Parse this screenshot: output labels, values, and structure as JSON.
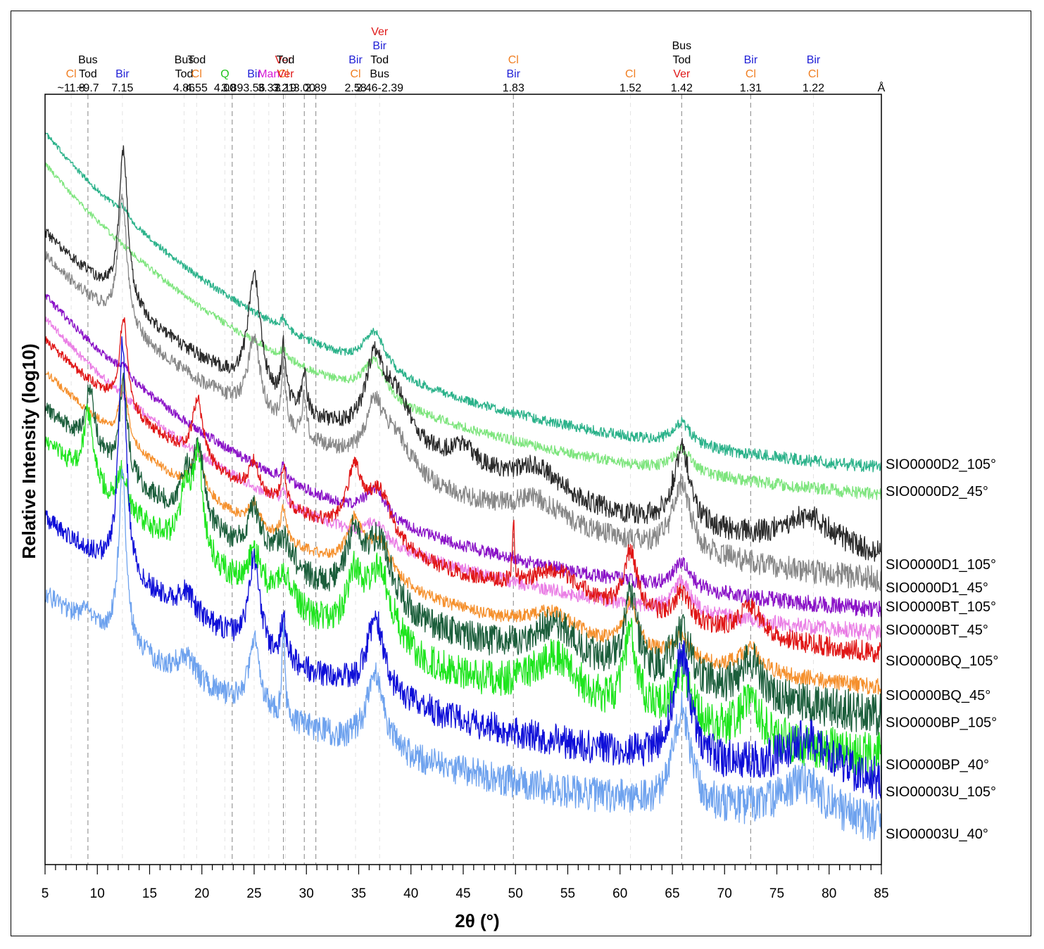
{
  "mineral_colors": {
    "Cl": "#f07f23",
    "Bus": "#000000",
    "Tod": "#000000",
    "Bir": "#1f1fd6",
    "Q": "#22c41e",
    "Man": "#d61ad6",
    "Ver": "#e01818"
  },
  "chart_data": {
    "type": "line",
    "title": "",
    "xlabel": "2θ (°)",
    "ylabel": "Relative Intensity (log10)",
    "xlim": [
      5,
      85
    ],
    "x_ticks": [
      "5",
      "10",
      "15",
      "20",
      "25",
      "30",
      "35",
      "40",
      "45",
      "50",
      "55",
      "60",
      "65",
      "70",
      "75",
      "80",
      "85"
    ],
    "angstrom_unit": "Å",
    "peak_annotations": [
      {
        "two_theta": 7.5,
        "d": "~11.8",
        "minerals": [
          "Cl"
        ],
        "dashed": false
      },
      {
        "two_theta": 9.1,
        "d": "~9.7",
        "minerals": [
          "Bus",
          "Tod"
        ],
        "dashed": true
      },
      {
        "two_theta": 12.4,
        "d": "7.15",
        "minerals": [
          "Bir"
        ],
        "dashed": false
      },
      {
        "two_theta": 18.3,
        "d": "4.86",
        "minerals": [
          "Bus",
          "Tod"
        ],
        "dashed": false
      },
      {
        "two_theta": 19.5,
        "d": "4.55",
        "minerals": [
          "Tod",
          "Cl"
        ],
        "dashed": false
      },
      {
        "two_theta": 22.2,
        "d": "4.00",
        "minerals": [
          "Q"
        ],
        "dashed": false
      },
      {
        "two_theta": 22.9,
        "d": "3.89",
        "minerals": [],
        "dashed": true
      },
      {
        "two_theta": 25.0,
        "d": "3.56",
        "minerals": [
          "Bir"
        ],
        "dashed": false
      },
      {
        "two_theta": 26.4,
        "d": "3.37",
        "minerals": [
          "Man"
        ],
        "dashed": false
      },
      {
        "two_theta": 27.8,
        "d": "3.21",
        "minerals": [
          "Ver",
          "Cl"
        ],
        "dashed": true
      },
      {
        "two_theta": 28.0,
        "d": "3.19",
        "minerals": [
          "Tod",
          "Ver"
        ],
        "dashed": false
      },
      {
        "two_theta": 29.8,
        "d": "3.00",
        "minerals": [],
        "dashed": true
      },
      {
        "two_theta": 30.9,
        "d": "2.89",
        "minerals": [],
        "dashed": true
      },
      {
        "two_theta": 34.7,
        "d": "2.58",
        "minerals": [
          "Bir",
          "Cl"
        ],
        "dashed": false
      },
      {
        "two_theta": 37.0,
        "d": "2.46-2.39",
        "minerals": [
          "Ver",
          "Bir",
          "Tod",
          "Bus"
        ],
        "dashed": false
      },
      {
        "two_theta": 49.8,
        "d": "1.83",
        "minerals": [
          "Cl",
          "Bir"
        ],
        "dashed": true
      },
      {
        "two_theta": 61.0,
        "d": "1.52",
        "minerals": [
          "Cl"
        ],
        "dashed": false
      },
      {
        "two_theta": 65.9,
        "d": "1.42",
        "minerals": [
          "Bus",
          "Tod",
          "Ver"
        ],
        "dashed": true
      },
      {
        "two_theta": 72.5,
        "d": "1.31",
        "minerals": [
          "Bir",
          "Cl"
        ],
        "dashed": true
      },
      {
        "two_theta": 78.5,
        "d": "1.22",
        "minerals": [
          "Bir",
          "Cl"
        ],
        "dashed": false
      }
    ],
    "series": [
      {
        "name": "SIO0000D2_105°",
        "color": "#2bb28a",
        "start": 0.95,
        "end": 0.52,
        "curve": 3,
        "noise": 0.006,
        "peaks": [
          [
            12.5,
            0.012,
            0.6
          ],
          [
            27.8,
            0.015,
            0.25
          ],
          [
            36.5,
            0.05,
            1.3
          ],
          [
            65.9,
            0.03,
            1.1
          ]
        ]
      },
      {
        "name": "SIO0000D2_45°",
        "color": "#7ee57e",
        "start": 0.91,
        "end": 0.485,
        "curve": 3,
        "noise": 0.006,
        "peaks": [
          [
            27.8,
            0.012,
            0.25
          ],
          [
            36.5,
            0.05,
            1.3
          ],
          [
            65.9,
            0.03,
            1.1
          ]
        ]
      },
      {
        "name": "SIO0000D1_105°",
        "color": "#2a2a2a",
        "start": 0.82,
        "end": 0.39,
        "curve": 2.5,
        "noise": 0.012,
        "peaks": [
          [
            12.5,
            0.2,
            0.5
          ],
          [
            25.0,
            0.15,
            0.7
          ],
          [
            27.8,
            0.07,
            0.25
          ],
          [
            29.8,
            0.05,
            0.25
          ],
          [
            36.5,
            0.09,
            1.0
          ],
          [
            38.5,
            0.07,
            2.0
          ],
          [
            45.0,
            0.03,
            2.0
          ],
          [
            52.0,
            0.04,
            3.0
          ],
          [
            65.9,
            0.1,
            1.0
          ],
          [
            78.0,
            0.04,
            3.0
          ]
        ]
      },
      {
        "name": "SIO0000D1_45°",
        "color": "#878787",
        "start": 0.79,
        "end": 0.36,
        "curve": 2.5,
        "noise": 0.012,
        "peaks": [
          [
            12.4,
            0.17,
            0.5
          ],
          [
            25.0,
            0.1,
            0.7
          ],
          [
            27.8,
            0.08,
            0.25
          ],
          [
            29.8,
            0.05,
            0.25
          ],
          [
            36.5,
            0.07,
            1.0
          ],
          [
            38.5,
            0.05,
            2.0
          ],
          [
            52.0,
            0.03,
            3.0
          ],
          [
            65.9,
            0.09,
            1.0
          ]
        ]
      },
      {
        "name": "SIO0000BT_105°",
        "color": "#8a12c7",
        "start": 0.74,
        "end": 0.335,
        "curve": 3,
        "noise": 0.008,
        "peaks": [
          [
            12.5,
            0.012,
            0.5
          ],
          [
            27.8,
            0.02,
            0.25
          ],
          [
            36.6,
            0.04,
            1.2
          ],
          [
            65.9,
            0.035,
            1.0
          ]
        ]
      },
      {
        "name": "SIO0000BT_45°",
        "color": "#ea7ee5",
        "start": 0.71,
        "end": 0.305,
        "curve": 3,
        "noise": 0.008,
        "peaks": [
          [
            27.8,
            0.02,
            0.25
          ],
          [
            36.6,
            0.025,
            1.2
          ],
          [
            65.9,
            0.04,
            1.0
          ]
        ]
      },
      {
        "name": "SIO0000BQ_105°",
        "color": "#e01616",
        "start": 0.68,
        "end": 0.265,
        "curve": 2.5,
        "noise": 0.01,
        "peaks": [
          [
            12.5,
            0.12,
            0.45
          ],
          [
            19.6,
            0.08,
            0.6
          ],
          [
            25.0,
            0.04,
            0.6
          ],
          [
            27.8,
            0.05,
            0.3
          ],
          [
            34.6,
            0.08,
            0.9
          ],
          [
            37.0,
            0.07,
            1.5
          ],
          [
            49.8,
            0.08,
            0.12
          ],
          [
            54.0,
            0.04,
            3.0
          ],
          [
            61.0,
            0.08,
            0.8
          ],
          [
            65.9,
            0.04,
            1.0
          ],
          [
            72.5,
            0.04,
            1.2
          ]
        ]
      },
      {
        "name": "SIO0000BQ_45°",
        "color": "#f5902d",
        "start": 0.64,
        "end": 0.22,
        "curve": 2.5,
        "noise": 0.008,
        "peaks": [
          [
            12.5,
            0.08,
            0.45
          ],
          [
            19.6,
            0.06,
            0.6
          ],
          [
            25.0,
            0.03,
            0.6
          ],
          [
            27.8,
            0.04,
            0.3
          ],
          [
            34.6,
            0.06,
            0.9
          ],
          [
            37.0,
            0.05,
            1.5
          ],
          [
            53.5,
            0.03,
            3.0
          ],
          [
            61.0,
            0.06,
            0.8
          ],
          [
            65.9,
            0.03,
            1.0
          ],
          [
            72.5,
            0.03,
            1.2
          ]
        ]
      },
      {
        "name": "SIO0000BP_105°",
        "color": "#1b5e3b",
        "start": 0.59,
        "end": 0.185,
        "curve": 2.5,
        "noise": 0.02,
        "peaks": [
          [
            9.3,
            0.08,
            0.5
          ],
          [
            12.5,
            0.12,
            0.45
          ],
          [
            18.5,
            0.05,
            0.6
          ],
          [
            19.7,
            0.1,
            0.6
          ],
          [
            25.0,
            0.06,
            0.8
          ],
          [
            27.8,
            0.04,
            1.0
          ],
          [
            34.6,
            0.08,
            0.9
          ],
          [
            37.0,
            0.09,
            1.5
          ],
          [
            53.8,
            0.05,
            3.0
          ],
          [
            61.0,
            0.1,
            0.8
          ],
          [
            65.9,
            0.07,
            1.2
          ],
          [
            72.5,
            0.05,
            1.2
          ]
        ]
      },
      {
        "name": "SIO0000BP_40°",
        "color": "#1ee51e",
        "start": 0.55,
        "end": 0.13,
        "curve": 2.5,
        "noise": 0.022,
        "peaks": [
          [
            9.1,
            0.09,
            0.5
          ],
          [
            12.4,
            0.05,
            0.45
          ],
          [
            18.4,
            0.07,
            0.6
          ],
          [
            19.6,
            0.13,
            0.6
          ],
          [
            25.0,
            0.05,
            0.8
          ],
          [
            27.8,
            0.04,
            1.0
          ],
          [
            34.6,
            0.07,
            0.9
          ],
          [
            37.0,
            0.1,
            1.5
          ],
          [
            53.8,
            0.06,
            3.0
          ],
          [
            61.0,
            0.1,
            0.8
          ],
          [
            65.9,
            0.07,
            1.2
          ],
          [
            72.5,
            0.05,
            1.2
          ]
        ]
      },
      {
        "name": "SIO00003U_105°",
        "color": "#0f0fd8",
        "start": 0.45,
        "end": 0.095,
        "curve": 2.5,
        "noise": 0.02,
        "peaks": [
          [
            12.4,
            0.3,
            0.45
          ],
          [
            18.5,
            0.03,
            1.0
          ],
          [
            25.0,
            0.12,
            0.6
          ],
          [
            27.8,
            0.05,
            0.3
          ],
          [
            36.6,
            0.1,
            1.0
          ],
          [
            65.9,
            0.14,
            1.0
          ],
          [
            78.0,
            0.05,
            3.0
          ]
        ]
      },
      {
        "name": "SIO00003U_40°",
        "color": "#6ea2ee",
        "start": 0.35,
        "end": 0.04,
        "curve": 2.5,
        "noise": 0.02,
        "peaks": [
          [
            9.1,
            0.02,
            0.5
          ],
          [
            12.4,
            0.22,
            0.45
          ],
          [
            18.5,
            0.03,
            1.0
          ],
          [
            25.0,
            0.09,
            0.6
          ],
          [
            27.8,
            0.12,
            0.15
          ],
          [
            36.6,
            0.1,
            1.0
          ],
          [
            65.9,
            0.13,
            1.0
          ],
          [
            77.5,
            0.05,
            3.0
          ]
        ]
      }
    ]
  }
}
